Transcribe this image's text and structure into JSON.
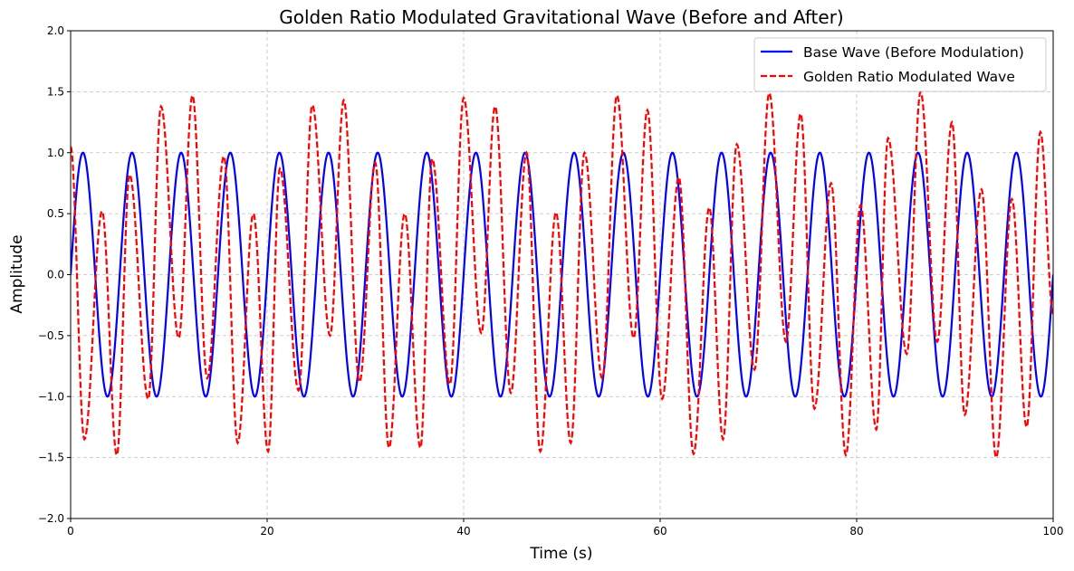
{
  "chart_data": {
    "type": "line",
    "title": "Golden Ratio Modulated Gravitational Wave (Before and After)",
    "xlabel": "Time (s)",
    "ylabel": "Amplitude",
    "xlim": [
      0,
      100
    ],
    "ylim": [
      -2.0,
      2.0
    ],
    "xticks": [
      0,
      20,
      40,
      60,
      80,
      100
    ],
    "xtick_labels": [
      "0",
      "20",
      "40",
      "60",
      "80",
      "100"
    ],
    "yticks": [
      -2.0,
      -1.5,
      -1.0,
      -0.5,
      0.0,
      0.5,
      1.0,
      1.5,
      2.0
    ],
    "ytick_labels": [
      "−2.0",
      "−1.5",
      "−1.0",
      "−0.5",
      "0.0",
      "0.5",
      "1.0",
      "1.5",
      "2.0"
    ],
    "grid": true,
    "legend_position": "top-right",
    "series": [
      {
        "name": "Base Wave (Before Modulation)",
        "color": "#0000ff",
        "linestyle": "solid",
        "function": "sine",
        "amplitude": 1.0,
        "period": 5.0,
        "phase": 0.0
      },
      {
        "name": "Golden Ratio Modulated Wave",
        "color": "#ff0000",
        "linestyle": "dashed",
        "extrema": [
          [
            0.0,
            1.05
          ],
          [
            1.4,
            -1.35
          ],
          [
            3.2,
            0.52
          ],
          [
            4.7,
            -1.48
          ],
          [
            6.0,
            0.82
          ],
          [
            7.9,
            -1.02
          ],
          [
            9.2,
            1.38
          ],
          [
            11.0,
            -0.52
          ],
          [
            12.4,
            1.47
          ],
          [
            13.9,
            -0.85
          ],
          [
            15.6,
            0.97
          ],
          [
            17.0,
            -1.38
          ],
          [
            18.6,
            0.5
          ],
          [
            20.1,
            -1.45
          ],
          [
            21.3,
            0.87
          ],
          [
            23.2,
            -0.95
          ],
          [
            24.6,
            1.39
          ],
          [
            26.4,
            -0.5
          ],
          [
            27.8,
            1.43
          ],
          [
            29.4,
            -0.88
          ],
          [
            31.0,
            0.92
          ],
          [
            32.4,
            -1.42
          ],
          [
            34.0,
            0.5
          ],
          [
            35.6,
            -1.42
          ],
          [
            36.8,
            0.95
          ],
          [
            38.6,
            -0.9
          ],
          [
            40.0,
            1.45
          ],
          [
            41.8,
            -0.48
          ],
          [
            43.2,
            1.38
          ],
          [
            44.8,
            -0.97
          ],
          [
            46.4,
            1.0
          ],
          [
            47.8,
            -1.45
          ],
          [
            49.4,
            0.51
          ],
          [
            50.9,
            -1.38
          ],
          [
            52.3,
            1.0
          ],
          [
            54.1,
            -0.85
          ],
          [
            55.6,
            1.47
          ],
          [
            57.3,
            -0.52
          ],
          [
            58.7,
            1.35
          ],
          [
            60.2,
            -1.02
          ],
          [
            61.9,
            0.8
          ],
          [
            63.4,
            -1.47
          ],
          [
            65.0,
            0.55
          ],
          [
            66.4,
            -1.35
          ],
          [
            67.8,
            1.07
          ],
          [
            69.6,
            -0.78
          ],
          [
            71.1,
            1.49
          ],
          [
            72.8,
            -0.55
          ],
          [
            74.3,
            1.32
          ],
          [
            75.7,
            -1.1
          ],
          [
            77.4,
            0.75
          ],
          [
            78.9,
            -1.48
          ],
          [
            80.4,
            0.57
          ],
          [
            82.0,
            -1.27
          ],
          [
            83.2,
            1.12
          ],
          [
            85.1,
            -0.65
          ],
          [
            86.5,
            1.5
          ],
          [
            88.2,
            -0.55
          ],
          [
            89.7,
            1.25
          ],
          [
            91.0,
            -1.15
          ],
          [
            92.7,
            0.7
          ],
          [
            94.2,
            -1.5
          ],
          [
            95.8,
            0.62
          ],
          [
            97.3,
            -1.25
          ],
          [
            98.7,
            1.17
          ],
          [
            100.0,
            -0.32
          ]
        ]
      }
    ]
  }
}
